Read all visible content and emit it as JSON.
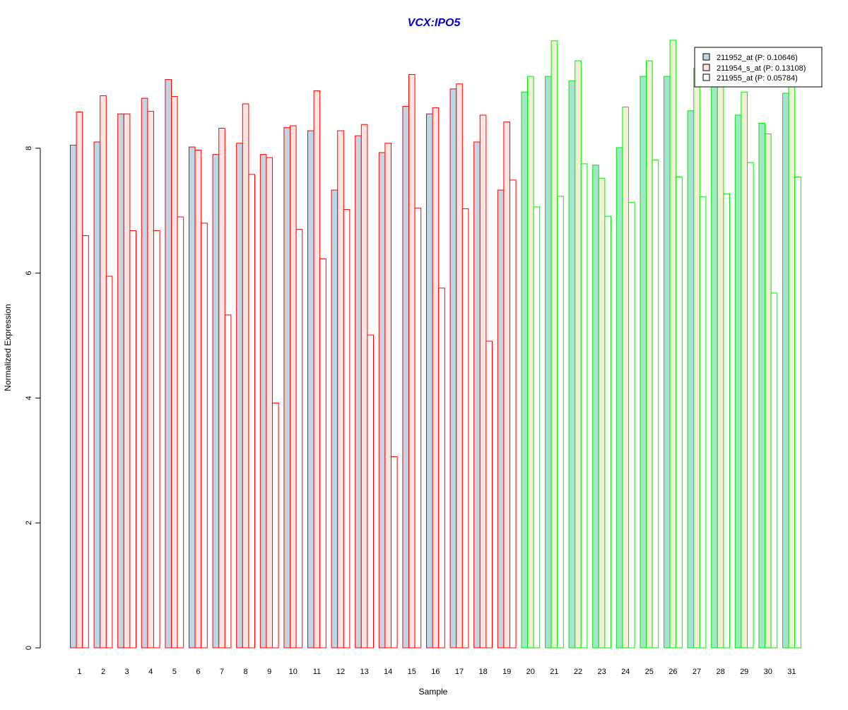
{
  "chart_data": {
    "type": "bar",
    "title": "VCX:IPO5",
    "xlabel": "Sample",
    "ylabel": "Normalized Expression",
    "ylim": [
      0,
      10
    ],
    "yticks": [
      0,
      2,
      4,
      6,
      8
    ],
    "grid": false,
    "legend_position": "top-right",
    "categories": [
      "1",
      "2",
      "3",
      "4",
      "5",
      "6",
      "7",
      "8",
      "9",
      "10",
      "11",
      "12",
      "13",
      "14",
      "15",
      "16",
      "17",
      "18",
      "19",
      "20",
      "21",
      "22",
      "23",
      "24",
      "25",
      "26",
      "27",
      "28",
      "29",
      "30",
      "31"
    ],
    "groups": {
      "group_a": {
        "samples": "1-19",
        "border_color": "#ff0000"
      },
      "group_b": {
        "samples": "20-31",
        "border_color": "#00ee00"
      }
    },
    "series": [
      {
        "name": "211952_at (P: 0.10646)",
        "fill_group_a": "#c0d6e4",
        "fill_group_b": "#a4e4cc",
        "values": [
          8.05,
          8.1,
          8.55,
          8.8,
          9.1,
          8.02,
          7.9,
          8.08,
          7.9,
          8.33,
          8.28,
          7.33,
          8.2,
          7.93,
          8.67,
          8.55,
          8.95,
          8.1,
          7.33,
          8.9,
          9.15,
          9.08,
          7.73,
          8.01,
          9.15,
          9.15,
          8.6,
          9.07,
          8.53,
          8.4,
          8.88
        ]
      },
      {
        "name": "211954_s_at (P: 0.13108)",
        "fill_group_a": "#ffe4e1",
        "fill_group_b": "#f1f0d6",
        "values": [
          8.58,
          8.84,
          8.55,
          8.59,
          8.83,
          7.97,
          8.32,
          8.71,
          7.85,
          8.36,
          8.92,
          8.28,
          8.38,
          8.08,
          9.18,
          8.65,
          9.03,
          8.53,
          8.42,
          9.15,
          9.72,
          9.4,
          7.52,
          8.66,
          9.4,
          9.73,
          9.28,
          9.4,
          8.9,
          8.23,
          9.6
        ]
      },
      {
        "name": "211955_at (P: 0.05784)",
        "fill_group_a": "#ffffff",
        "fill_group_b": "#ffffff",
        "values": [
          6.6,
          5.95,
          6.68,
          6.68,
          6.9,
          6.8,
          5.33,
          7.58,
          3.92,
          6.7,
          6.23,
          7.02,
          5.01,
          3.06,
          7.04,
          5.76,
          7.03,
          4.91,
          7.49,
          7.06,
          7.23,
          7.75,
          6.91,
          7.13,
          7.81,
          7.54,
          7.22,
          7.27,
          7.77,
          5.68,
          7.54
        ]
      }
    ]
  },
  "colors": {
    "title": "#0000cc",
    "axis": "#000000",
    "legend_swatch_1": "#c0d6e4",
    "legend_swatch_2": "#ffe4e1",
    "legend_swatch_3": "#ffffff"
  }
}
